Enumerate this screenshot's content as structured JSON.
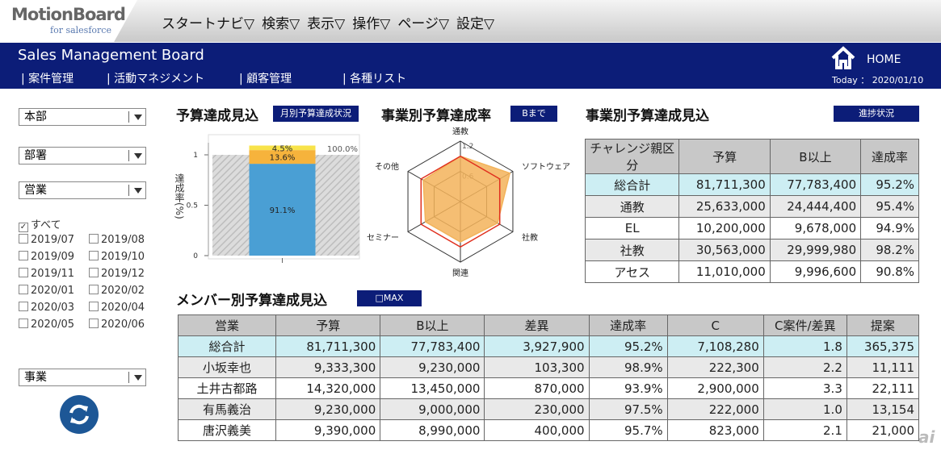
{
  "header": {
    "logo": "MotionBoard",
    "logo_sub": "for salesforce",
    "menu": [
      "スタートナビ▽",
      "検索▽",
      "表示▽",
      "操作▽",
      "ページ▽",
      "設定▽"
    ]
  },
  "nav": {
    "title": "Sales Management Board",
    "links": [
      "| 案件管理",
      "| 活動マネジメント",
      "| 顧客管理",
      "| 各種リスト"
    ],
    "home": "HOME",
    "today": "Today ： 2020/01/10"
  },
  "sidebar": {
    "selects": [
      "本部",
      "部署",
      "営業"
    ],
    "all": "すべて",
    "months": [
      "2019/07",
      "2019/08",
      "2019/09",
      "2019/10",
      "2019/11",
      "2019/12",
      "2020/01",
      "2020/02",
      "2020/03",
      "2020/04",
      "2020/05",
      "2020/06"
    ],
    "select_bottom": "事業"
  },
  "chart_data": [
    {
      "type": "bar",
      "title": "予算達成見込",
      "button": "月別予算達成状況",
      "ylabel": "達成率(%)",
      "categories": [
        null
      ],
      "stacked": true,
      "series": [
        {
          "color": "#4a9fd4",
          "values": [
            0.911
          ],
          "value_labels": [
            "91.1%"
          ]
        },
        {
          "color": "#f6b33c",
          "values": [
            0.136
          ],
          "value_labels": [
            "13.6%"
          ]
        },
        {
          "color": "#f8e34a",
          "values": [
            0.045
          ],
          "value_labels": [
            "4.5%"
          ]
        }
      ],
      "reference": {
        "value": 1,
        "label": "100.0%"
      },
      "ylim": [
        0,
        1.2
      ],
      "yticks": [
        0,
        0.5,
        1
      ]
    },
    {
      "type": "radar",
      "title": "事業別予算達成率",
      "button": "Bまで",
      "axes": [
        "通教",
        "ソフトウェア",
        "社教",
        "関連",
        "セミナー",
        "その他"
      ],
      "series": [
        {
          "color": "#f3b35a",
          "values": [
            0.9,
            1.13,
            0.85,
            0.8,
            0.8,
            0.85
          ]
        },
        {
          "color": "#e0301e",
          "values": [
            0.9,
            0.9,
            0.9,
            0.9,
            0.9,
            0.9
          ]
        }
      ],
      "rlim": [
        0,
        1.2
      ],
      "rticks": [
        0.6,
        1.2
      ]
    }
  ],
  "table1": {
    "title": "事業別予算達成見込",
    "button": "進捗状況",
    "columns": [
      "チャレンジ親区分",
      "予算",
      "B以上",
      "達成率"
    ],
    "rows": [
      [
        "総合計",
        "81,711,300",
        "77,783,400",
        "95.2%"
      ],
      [
        "通教",
        "25,633,000",
        "24,444,400",
        "95.4%"
      ],
      [
        "EL",
        "10,200,000",
        "9,678,000",
        "94.9%"
      ],
      [
        "社教",
        "30,563,000",
        "29,999,980",
        "98.2%"
      ],
      [
        "アセス",
        "11,010,000",
        "9,996,600",
        "90.8%"
      ]
    ]
  },
  "table2": {
    "title": "メンバー別予算達成見込",
    "button": "□MAX",
    "columns": [
      "営業",
      "予算",
      "B以上",
      "差異",
      "達成率",
      "C",
      "C案件/差異",
      "提案"
    ],
    "rows": [
      [
        "総合計",
        "81,711,300",
        "77,783,400",
        "3,927,900",
        "95.2%",
        "7,108,280",
        "1.8",
        "365,375"
      ],
      [
        "小坂幸也",
        "9,333,300",
        "9,230,000",
        "103,300",
        "98.9%",
        "222,300",
        "2.2",
        "11,111"
      ],
      [
        "土井古都路",
        "14,320,000",
        "13,450,000",
        "870,000",
        "93.9%",
        "2,900,000",
        "3.3",
        "22,111"
      ],
      [
        "有馬義治",
        "9,230,000",
        "9,000,000",
        "230,000",
        "97.5%",
        "222,000",
        "1.0",
        "13,154"
      ],
      [
        "唐沢義美",
        "9,390,000",
        "8,990,000",
        "400,000",
        "95.7%",
        "823,000",
        "2.1",
        "21,000"
      ]
    ]
  },
  "watermark": "ai"
}
